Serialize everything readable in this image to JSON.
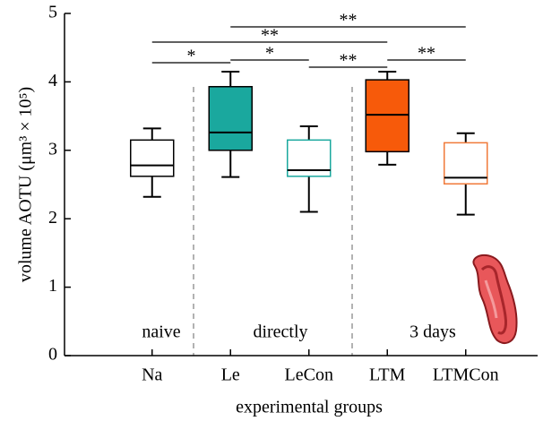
{
  "chart_data": {
    "type": "box",
    "ylabel": "volume AOTU (μm³ × 10⁵)",
    "xlabel": "experimental groups",
    "categories": [
      "Na",
      "Le",
      "LeCon",
      "LTM",
      "LTMCon"
    ],
    "boxes": [
      {
        "low": 2.32,
        "q1": 2.62,
        "median": 2.78,
        "q3": 3.15,
        "high": 3.32,
        "fill": "#ffffff",
        "edge": "#000000"
      },
      {
        "low": 2.61,
        "q1": 3.0,
        "median": 3.26,
        "q3": 3.93,
        "high": 4.15,
        "fill": "#1aa89e",
        "edge": "#000000"
      },
      {
        "low": 2.1,
        "q1": 2.62,
        "median": 2.71,
        "q3": 3.15,
        "high": 3.35,
        "fill": "#ffffff",
        "edge": "#1aa89e"
      },
      {
        "low": 2.79,
        "q1": 2.98,
        "median": 3.52,
        "q3": 4.03,
        "high": 4.15,
        "fill": "#f75a0a",
        "edge": "#000000"
      },
      {
        "low": 2.06,
        "q1": 2.51,
        "median": 2.6,
        "q3": 3.11,
        "high": 3.25,
        "fill": "#ffffff",
        "edge": "#f07a3a"
      }
    ],
    "ylim": [
      0,
      5
    ],
    "yticks": [
      0,
      1,
      2,
      3,
      4,
      5
    ],
    "group_labels": [
      "naive",
      "directly",
      "3 days"
    ],
    "significance": [
      {
        "label": "**",
        "from": 1,
        "to": 4
      },
      {
        "label": "**",
        "from": 0,
        "to": 3
      },
      {
        "label": "*",
        "from": 0,
        "to": 1
      },
      {
        "label": "*",
        "from": 1,
        "to": 2
      },
      {
        "label": "**",
        "from": 2,
        "to": 3
      },
      {
        "label": "**",
        "from": 3,
        "to": 4
      }
    ]
  }
}
